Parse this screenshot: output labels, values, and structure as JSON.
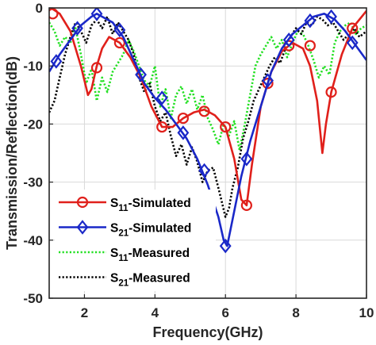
{
  "chart_data": {
    "type": "line",
    "xlabel": "Frequency(GHz)",
    "ylabel": "Transmission/Reflection(dB)",
    "xlim": [
      1,
      10
    ],
    "ylim": [
      -50,
      0
    ],
    "xticks": [
      2,
      4,
      6,
      8,
      10
    ],
    "yticks": [
      0,
      -10,
      -20,
      -30,
      -40,
      -50
    ],
    "grid": true,
    "legend_position": "bottom-left",
    "series": [
      {
        "name": "S11-Simulated",
        "legend": {
          "base": "S",
          "sub": "11",
          "suffix": "-Simulated"
        },
        "color": "#e0201b",
        "style": "solid",
        "marker": "circle",
        "x": [
          1.0,
          1.3,
          1.6,
          1.9,
          2.1,
          2.2,
          2.35,
          2.5,
          2.7,
          3.0,
          3.3,
          3.6,
          3.9,
          4.2,
          4.5,
          4.8,
          5.1,
          5.4,
          5.7,
          6.0,
          6.25,
          6.45,
          6.6,
          6.75,
          7.0,
          7.3,
          7.6,
          7.9,
          8.2,
          8.4,
          8.6,
          8.75,
          8.85,
          9.0,
          9.3,
          9.6,
          10.0
        ],
        "y": [
          0.2,
          -1.0,
          -4.0,
          -10.0,
          -15.0,
          -14.0,
          -10.0,
          -7.0,
          -5.0,
          -6.0,
          -8.5,
          -12.0,
          -17.0,
          -20.5,
          -20.5,
          -19.0,
          -18.0,
          -17.5,
          -18.5,
          -20.5,
          -26.0,
          -33.0,
          -34.0,
          -27.0,
          -17.0,
          -11.0,
          -7.5,
          -6.0,
          -7.0,
          -10.0,
          -16.0,
          -25.0,
          -20.0,
          -14.5,
          -8.0,
          -3.5,
          -0.5
        ],
        "marker_x": [
          1.1,
          2.35,
          3.0,
          4.2,
          4.8,
          5.4,
          6.0,
          6.6,
          7.2,
          7.8,
          8.4,
          9.0,
          9.6
        ],
        "marker_y": [
          -1.0,
          -10.3,
          -6.0,
          -20.5,
          -19.0,
          -17.8,
          -20.5,
          -34.0,
          -13.0,
          -6.5,
          -6.5,
          -14.5,
          -3.5
        ]
      },
      {
        "name": "S21-Simulated",
        "legend": {
          "base": "S",
          "sub": "21",
          "suffix": "-Simulated"
        },
        "color": "#1a28c8",
        "style": "solid",
        "marker": "diamond",
        "x": [
          1.0,
          1.3,
          1.6,
          1.9,
          2.2,
          2.35,
          2.5,
          2.8,
          3.1,
          3.4,
          3.7,
          4.0,
          4.3,
          4.6,
          4.9,
          5.2,
          5.5,
          5.8,
          5.95,
          6.05,
          6.25,
          6.45,
          6.7,
          7.0,
          7.3,
          7.6,
          7.9,
          8.2,
          8.5,
          8.8,
          9.1,
          9.4,
          9.7,
          10.0
        ],
        "y": [
          -11.0,
          -8.0,
          -5.5,
          -3.0,
          -1.5,
          -1.0,
          -1.5,
          -2.5,
          -5.0,
          -9.0,
          -13.0,
          -15.5,
          -17.5,
          -20.0,
          -22.5,
          -26.0,
          -30.5,
          -36.0,
          -40.0,
          -41.0,
          -35.0,
          -29.0,
          -23.0,
          -17.0,
          -11.0,
          -7.0,
          -4.5,
          -3.0,
          -1.5,
          -1.0,
          -2.0,
          -4.0,
          -6.5,
          -9.0
        ],
        "marker_x": [
          1.2,
          1.8,
          2.35,
          3.0,
          3.6,
          4.2,
          4.8,
          5.4,
          6.0,
          6.6,
          7.2,
          7.8,
          8.4,
          9.0,
          9.6
        ],
        "marker_y": [
          -9.2,
          -3.5,
          -1.0,
          -3.8,
          -11.5,
          -15.5,
          -21.5,
          -28.0,
          -41.0,
          -26.0,
          -12.5,
          -5.5,
          -2.2,
          -1.5,
          -6.0
        ]
      },
      {
        "name": "S11-Measured",
        "legend": {
          "base": "S",
          "sub": "11",
          "suffix": "-Measured"
        },
        "color": "#22e022",
        "style": "dotted",
        "marker": "none",
        "x": [
          1.0,
          1.15,
          1.3,
          1.45,
          1.6,
          1.75,
          1.9,
          2.05,
          2.2,
          2.35,
          2.5,
          2.65,
          2.8,
          2.95,
          3.1,
          3.25,
          3.4,
          3.55,
          3.7,
          3.85,
          4.0,
          4.15,
          4.3,
          4.45,
          4.6,
          4.75,
          4.9,
          5.05,
          5.2,
          5.35,
          5.5,
          5.65,
          5.8,
          5.95,
          6.1,
          6.25,
          6.4,
          6.55,
          6.7,
          6.85,
          7.0,
          7.15,
          7.3,
          7.45,
          7.6,
          7.75,
          7.9,
          8.05,
          8.2,
          8.35,
          8.5,
          8.65,
          8.8,
          8.95,
          9.1,
          9.25,
          9.4,
          9.55,
          9.7,
          9.85,
          10.0
        ],
        "y": [
          -2.5,
          -4.0,
          -6.5,
          -5.0,
          -6.0,
          -3.5,
          -8.0,
          -13.0,
          -10.5,
          -16.0,
          -12.0,
          -14.5,
          -11.0,
          -9.5,
          -8.0,
          -5.5,
          -7.5,
          -10.0,
          -12.5,
          -13.5,
          -10.0,
          -17.0,
          -14.0,
          -19.0,
          -15.0,
          -13.5,
          -16.5,
          -14.0,
          -17.5,
          -15.0,
          -19.0,
          -21.0,
          -23.5,
          -20.0,
          -22.0,
          -19.5,
          -24.5,
          -20.0,
          -15.0,
          -10.0,
          -8.0,
          -6.5,
          -5.0,
          -7.0,
          -5.5,
          -8.5,
          -6.0,
          -4.0,
          -4.5,
          -6.5,
          -9.0,
          -12.0,
          -10.0,
          -11.5,
          -6.0,
          -4.0,
          -3.0,
          -2.5,
          -4.5,
          -3.5,
          -3.0
        ]
      },
      {
        "name": "S21-Measured",
        "legend": {
          "base": "S",
          "sub": "21",
          "suffix": "-Measured"
        },
        "color": "#000000",
        "style": "dotted",
        "marker": "none",
        "x": [
          1.0,
          1.15,
          1.3,
          1.45,
          1.6,
          1.75,
          1.9,
          2.05,
          2.2,
          2.35,
          2.5,
          2.65,
          2.8,
          2.95,
          3.1,
          3.25,
          3.4,
          3.55,
          3.7,
          3.85,
          4.0,
          4.15,
          4.3,
          4.45,
          4.6,
          4.75,
          4.9,
          5.05,
          5.2,
          5.35,
          5.5,
          5.65,
          5.8,
          5.9,
          6.0,
          6.1,
          6.2,
          6.35,
          6.5,
          6.65,
          6.8,
          6.95,
          7.1,
          7.25,
          7.4,
          7.55,
          7.7,
          7.85,
          8.0,
          8.15,
          8.3,
          8.45,
          8.6,
          8.75,
          8.9,
          9.05,
          9.2,
          9.35,
          9.5,
          9.65,
          9.8,
          10.0
        ],
        "y": [
          -18.0,
          -16.0,
          -12.0,
          -8.0,
          -5.0,
          -2.5,
          -4.0,
          -6.0,
          -3.0,
          -2.0,
          -3.5,
          -1.5,
          -4.5,
          -2.5,
          -4.0,
          -5.5,
          -8.0,
          -12.0,
          -14.5,
          -13.0,
          -17.0,
          -19.5,
          -18.0,
          -22.0,
          -25.5,
          -23.5,
          -27.0,
          -24.0,
          -26.5,
          -30.0,
          -28.0,
          -27.5,
          -31.0,
          -33.5,
          -36.0,
          -34.5,
          -31.0,
          -27.5,
          -22.5,
          -19.5,
          -16.0,
          -14.0,
          -12.0,
          -10.0,
          -8.5,
          -9.5,
          -7.0,
          -5.0,
          -3.5,
          -4.5,
          -2.5,
          -3.0,
          -1.5,
          -2.0,
          -3.0,
          -2.5,
          -4.0,
          -5.5,
          -4.5,
          -3.5,
          -5.0,
          -4.0
        ]
      }
    ]
  }
}
